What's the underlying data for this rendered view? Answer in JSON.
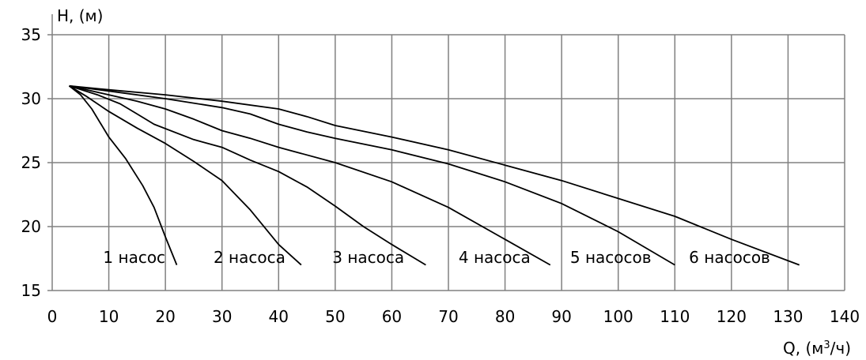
{
  "chart_data": {
    "type": "line",
    "title": "",
    "ylabel": "H, (м)",
    "xlabel_prefix": "Q, (м",
    "xlabel_sup": "3",
    "xlabel_suffix": "/ч)",
    "xlim": [
      0,
      140
    ],
    "ylim": [
      15,
      35
    ],
    "xticks": [
      0,
      10,
      20,
      30,
      40,
      50,
      60,
      70,
      80,
      90,
      100,
      110,
      120,
      130,
      140
    ],
    "yticks": [
      15,
      20,
      25,
      30,
      35
    ],
    "grid": true,
    "colors": {
      "line": "#000000",
      "grid": "#808080",
      "axis": "#808080"
    },
    "series": [
      {
        "label": "1 насос",
        "label_at": [
          9,
          17.6
        ],
        "points": [
          [
            3,
            31
          ],
          [
            5,
            30.3
          ],
          [
            7,
            29.2
          ],
          [
            10,
            27
          ],
          [
            13,
            25.3
          ],
          [
            16,
            23.2
          ],
          [
            18,
            21.5
          ],
          [
            20,
            19.2
          ],
          [
            22,
            17
          ]
        ]
      },
      {
        "label": "2 насоса",
        "label_at": [
          28.5,
          17.6
        ],
        "points": [
          [
            3,
            31
          ],
          [
            6,
            30.2
          ],
          [
            10,
            29
          ],
          [
            15,
            27.7
          ],
          [
            20,
            26.5
          ],
          [
            25,
            25.1
          ],
          [
            30,
            23.6
          ],
          [
            35,
            21.3
          ],
          [
            40,
            18.6
          ],
          [
            44,
            17
          ]
        ]
      },
      {
        "label": "3 насоса",
        "label_at": [
          49.5,
          17.6
        ],
        "points": [
          [
            3,
            31
          ],
          [
            8,
            30.3
          ],
          [
            12,
            29.6
          ],
          [
            15,
            28.8
          ],
          [
            18,
            28
          ],
          [
            25,
            26.8
          ],
          [
            30,
            26.2
          ],
          [
            35,
            25.2
          ],
          [
            40,
            24.3
          ],
          [
            45,
            23.1
          ],
          [
            50,
            21.6
          ],
          [
            55,
            20
          ],
          [
            60,
            18.6
          ],
          [
            66,
            17
          ]
        ]
      },
      {
        "label": "4 насоса",
        "label_at": [
          71.8,
          17.6
        ],
        "points": [
          [
            3,
            31
          ],
          [
            10,
            30.3
          ],
          [
            15,
            29.8
          ],
          [
            20,
            29.2
          ],
          [
            25,
            28.4
          ],
          [
            30,
            27.5
          ],
          [
            35,
            26.9
          ],
          [
            40,
            26.2
          ],
          [
            50,
            25
          ],
          [
            60,
            23.5
          ],
          [
            70,
            21.5
          ],
          [
            80,
            19
          ],
          [
            88,
            17
          ]
        ]
      },
      {
        "label": "5 насосов",
        "label_at": [
          91.5,
          17.6
        ],
        "points": [
          [
            3,
            31
          ],
          [
            10,
            30.6
          ],
          [
            20,
            30
          ],
          [
            30,
            29.3
          ],
          [
            35,
            28.8
          ],
          [
            40,
            28
          ],
          [
            45,
            27.4
          ],
          [
            50,
            26.9
          ],
          [
            60,
            26
          ],
          [
            70,
            24.9
          ],
          [
            80,
            23.5
          ],
          [
            90,
            21.8
          ],
          [
            100,
            19.6
          ],
          [
            110,
            17
          ]
        ]
      },
      {
        "label": "6 насосов",
        "label_at": [
          112.5,
          17.6
        ],
        "points": [
          [
            3,
            31
          ],
          [
            10,
            30.7
          ],
          [
            20,
            30.3
          ],
          [
            30,
            29.8
          ],
          [
            40,
            29.2
          ],
          [
            45,
            28.6
          ],
          [
            50,
            27.9
          ],
          [
            60,
            27
          ],
          [
            70,
            26
          ],
          [
            80,
            24.8
          ],
          [
            90,
            23.6
          ],
          [
            100,
            22.2
          ],
          [
            110,
            20.8
          ],
          [
            120,
            19
          ],
          [
            132,
            17
          ]
        ]
      }
    ]
  }
}
